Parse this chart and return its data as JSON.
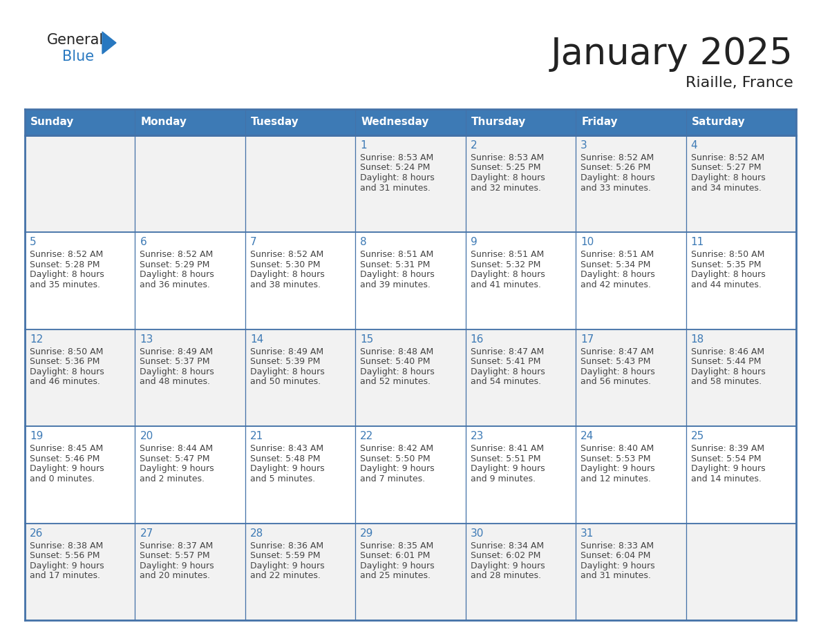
{
  "title": "January 2025",
  "subtitle": "Riaille, France",
  "days_of_week": [
    "Sunday",
    "Monday",
    "Tuesday",
    "Wednesday",
    "Thursday",
    "Friday",
    "Saturday"
  ],
  "header_bg_color": "#3d7ab5",
  "header_text_color": "#ffffff",
  "cell_bg_white": "#ffffff",
  "cell_bg_gray": "#f2f2f2",
  "grid_color": "#4472a8",
  "day_number_color": "#3d7ab5",
  "text_color": "#444444",
  "title_color": "#222222",
  "logo_black": "#222222",
  "logo_blue": "#2878c0",
  "weeks": [
    {
      "bg": "gray",
      "days": [
        {
          "date": null
        },
        {
          "date": null
        },
        {
          "date": null
        },
        {
          "date": 1,
          "sunrise": "8:53 AM",
          "sunset": "5:24 PM",
          "daylight_hours": 8,
          "daylight_minutes": 31
        },
        {
          "date": 2,
          "sunrise": "8:53 AM",
          "sunset": "5:25 PM",
          "daylight_hours": 8,
          "daylight_minutes": 32
        },
        {
          "date": 3,
          "sunrise": "8:52 AM",
          "sunset": "5:26 PM",
          "daylight_hours": 8,
          "daylight_minutes": 33
        },
        {
          "date": 4,
          "sunrise": "8:52 AM",
          "sunset": "5:27 PM",
          "daylight_hours": 8,
          "daylight_minutes": 34
        }
      ]
    },
    {
      "bg": "white",
      "days": [
        {
          "date": 5,
          "sunrise": "8:52 AM",
          "sunset": "5:28 PM",
          "daylight_hours": 8,
          "daylight_minutes": 35
        },
        {
          "date": 6,
          "sunrise": "8:52 AM",
          "sunset": "5:29 PM",
          "daylight_hours": 8,
          "daylight_minutes": 36
        },
        {
          "date": 7,
          "sunrise": "8:52 AM",
          "sunset": "5:30 PM",
          "daylight_hours": 8,
          "daylight_minutes": 38
        },
        {
          "date": 8,
          "sunrise": "8:51 AM",
          "sunset": "5:31 PM",
          "daylight_hours": 8,
          "daylight_minutes": 39
        },
        {
          "date": 9,
          "sunrise": "8:51 AM",
          "sunset": "5:32 PM",
          "daylight_hours": 8,
          "daylight_minutes": 41
        },
        {
          "date": 10,
          "sunrise": "8:51 AM",
          "sunset": "5:34 PM",
          "daylight_hours": 8,
          "daylight_minutes": 42
        },
        {
          "date": 11,
          "sunrise": "8:50 AM",
          "sunset": "5:35 PM",
          "daylight_hours": 8,
          "daylight_minutes": 44
        }
      ]
    },
    {
      "bg": "gray",
      "days": [
        {
          "date": 12,
          "sunrise": "8:50 AM",
          "sunset": "5:36 PM",
          "daylight_hours": 8,
          "daylight_minutes": 46
        },
        {
          "date": 13,
          "sunrise": "8:49 AM",
          "sunset": "5:37 PM",
          "daylight_hours": 8,
          "daylight_minutes": 48
        },
        {
          "date": 14,
          "sunrise": "8:49 AM",
          "sunset": "5:39 PM",
          "daylight_hours": 8,
          "daylight_minutes": 50
        },
        {
          "date": 15,
          "sunrise": "8:48 AM",
          "sunset": "5:40 PM",
          "daylight_hours": 8,
          "daylight_minutes": 52
        },
        {
          "date": 16,
          "sunrise": "8:47 AM",
          "sunset": "5:41 PM",
          "daylight_hours": 8,
          "daylight_minutes": 54
        },
        {
          "date": 17,
          "sunrise": "8:47 AM",
          "sunset": "5:43 PM",
          "daylight_hours": 8,
          "daylight_minutes": 56
        },
        {
          "date": 18,
          "sunrise": "8:46 AM",
          "sunset": "5:44 PM",
          "daylight_hours": 8,
          "daylight_minutes": 58
        }
      ]
    },
    {
      "bg": "white",
      "days": [
        {
          "date": 19,
          "sunrise": "8:45 AM",
          "sunset": "5:46 PM",
          "daylight_hours": 9,
          "daylight_minutes": 0
        },
        {
          "date": 20,
          "sunrise": "8:44 AM",
          "sunset": "5:47 PM",
          "daylight_hours": 9,
          "daylight_minutes": 2
        },
        {
          "date": 21,
          "sunrise": "8:43 AM",
          "sunset": "5:48 PM",
          "daylight_hours": 9,
          "daylight_minutes": 5
        },
        {
          "date": 22,
          "sunrise": "8:42 AM",
          "sunset": "5:50 PM",
          "daylight_hours": 9,
          "daylight_minutes": 7
        },
        {
          "date": 23,
          "sunrise": "8:41 AM",
          "sunset": "5:51 PM",
          "daylight_hours": 9,
          "daylight_minutes": 9
        },
        {
          "date": 24,
          "sunrise": "8:40 AM",
          "sunset": "5:53 PM",
          "daylight_hours": 9,
          "daylight_minutes": 12
        },
        {
          "date": 25,
          "sunrise": "8:39 AM",
          "sunset": "5:54 PM",
          "daylight_hours": 9,
          "daylight_minutes": 14
        }
      ]
    },
    {
      "bg": "gray",
      "days": [
        {
          "date": 26,
          "sunrise": "8:38 AM",
          "sunset": "5:56 PM",
          "daylight_hours": 9,
          "daylight_minutes": 17
        },
        {
          "date": 27,
          "sunrise": "8:37 AM",
          "sunset": "5:57 PM",
          "daylight_hours": 9,
          "daylight_minutes": 20
        },
        {
          "date": 28,
          "sunrise": "8:36 AM",
          "sunset": "5:59 PM",
          "daylight_hours": 9,
          "daylight_minutes": 22
        },
        {
          "date": 29,
          "sunrise": "8:35 AM",
          "sunset": "6:01 PM",
          "daylight_hours": 9,
          "daylight_minutes": 25
        },
        {
          "date": 30,
          "sunrise": "8:34 AM",
          "sunset": "6:02 PM",
          "daylight_hours": 9,
          "daylight_minutes": 28
        },
        {
          "date": 31,
          "sunrise": "8:33 AM",
          "sunset": "6:04 PM",
          "daylight_hours": 9,
          "daylight_minutes": 31
        },
        {
          "date": null
        }
      ]
    }
  ]
}
